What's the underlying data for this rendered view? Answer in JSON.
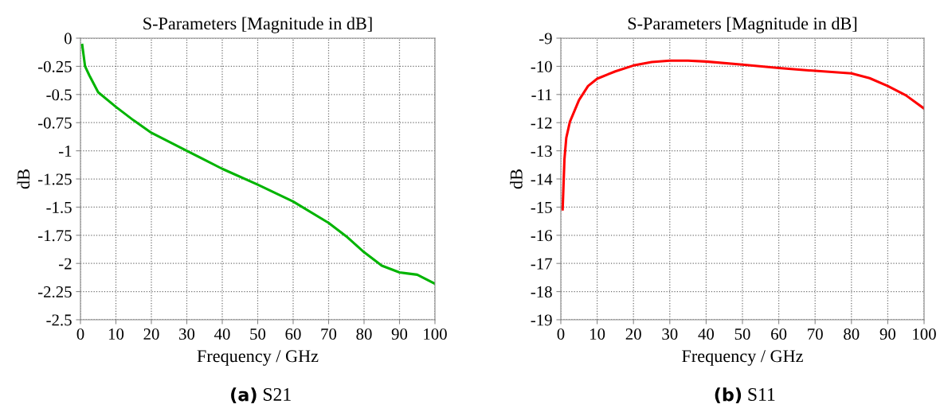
{
  "chart_data": [
    {
      "type": "line",
      "title": "S-Parameters [Magnitude in dB]",
      "xlabel": "Frequency / GHz",
      "ylabel": "dB",
      "x": [
        0.5,
        1.3,
        2.5,
        5,
        10,
        15,
        20,
        30,
        40,
        50,
        60,
        70,
        75,
        80,
        85,
        90,
        95,
        100
      ],
      "series": [
        {
          "color": "#00b400",
          "values": [
            -0.06,
            -0.25,
            -0.33,
            -0.48,
            -0.61,
            -0.73,
            -0.84,
            -1.0,
            -1.16,
            -1.3,
            -1.45,
            -1.64,
            -1.76,
            -1.9,
            -2.02,
            -2.08,
            -2.1,
            -2.18
          ]
        }
      ],
      "xlim": [
        0,
        100
      ],
      "xticks": [
        0,
        10,
        20,
        30,
        40,
        50,
        60,
        70,
        80,
        90,
        100
      ],
      "ylim": [
        -2.5,
        0
      ],
      "yticks": [
        0,
        -0.25,
        -0.5,
        -0.75,
        -1,
        -1.25,
        -1.5,
        -1.75,
        -2,
        -2.25,
        -2.5
      ],
      "grid": true,
      "line_style": "solid",
      "annotations": [
        "(a) S21"
      ]
    },
    {
      "type": "line",
      "title": "S-Parameters [Magnitude in dB]",
      "xlabel": "Frequency / GHz",
      "ylabel": "dB",
      "x": [
        0.5,
        1,
        1.5,
        2.5,
        5,
        7.5,
        10,
        15,
        20,
        25,
        30,
        35,
        40,
        50,
        60,
        70,
        80,
        85,
        90,
        95,
        100
      ],
      "series": [
        {
          "color": "#ff0000",
          "values": [
            -15.08,
            -13.3,
            -12.54,
            -11.97,
            -11.2,
            -10.7,
            -10.44,
            -10.18,
            -9.97,
            -9.85,
            -9.8,
            -9.8,
            -9.83,
            -9.94,
            -10.06,
            -10.16,
            -10.25,
            -10.42,
            -10.7,
            -11.03,
            -11.5
          ]
        }
      ],
      "xlim": [
        0,
        100
      ],
      "xticks": [
        0,
        10,
        20,
        30,
        40,
        50,
        60,
        70,
        80,
        90,
        100
      ],
      "ylim": [
        -19,
        -9
      ],
      "yticks": [
        -9,
        -10,
        -11,
        -12,
        -13,
        -14,
        -15,
        -16,
        -17,
        -18,
        -19
      ],
      "grid": true,
      "line_style": "solid",
      "annotations": [
        "(b) S11"
      ]
    }
  ]
}
